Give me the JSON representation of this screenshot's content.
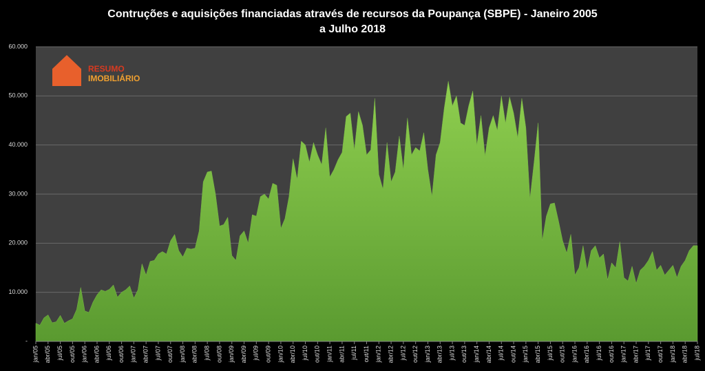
{
  "chart_data": {
    "type": "area",
    "title": "Contruções e aquisições financiadas através de recursos da Poupança (SBPE) - Janeiro 2005 a Julho 2018",
    "logo_text": [
      "RESUMO",
      "IMOBILIÁRIO"
    ],
    "categories": [
      "jan/05",
      null,
      null,
      "abr/05",
      null,
      null,
      "jul/05",
      null,
      null,
      "out/05",
      null,
      null,
      "jan/06",
      null,
      null,
      "abr/06",
      null,
      null,
      "jul/06",
      null,
      null,
      "out/06",
      null,
      null,
      "jan/07",
      null,
      null,
      "abr/07",
      null,
      null,
      "jul/07",
      null,
      null,
      "out/07",
      null,
      null,
      "jan/08",
      null,
      null,
      "abr/08",
      null,
      null,
      "jul/08",
      null,
      null,
      "out/08",
      null,
      null,
      "jan/09",
      null,
      null,
      "abr/09",
      null,
      null,
      "jul/09",
      null,
      null,
      "out/09",
      null,
      null,
      "jan/10",
      null,
      null,
      "abr/10",
      null,
      null,
      "jul/10",
      null,
      null,
      "out/10",
      null,
      null,
      "jan/11",
      null,
      null,
      "abr/11",
      null,
      null,
      "jul/11",
      null,
      null,
      "out/11",
      null,
      null,
      "jan/12",
      null,
      null,
      "abr/12",
      null,
      null,
      "jul/12",
      null,
      null,
      "out/12",
      null,
      null,
      "jan/13",
      null,
      null,
      "abr/13",
      null,
      null,
      "jul/13",
      null,
      null,
      "out/13",
      null,
      null,
      "jan/14",
      null,
      null,
      "abr/14",
      null,
      null,
      "jul/14",
      null,
      null,
      "out/14",
      null,
      null,
      "jan/15",
      null,
      null,
      "abr/15",
      null,
      null,
      "jul/15",
      null,
      null,
      "out/15",
      null,
      null,
      "jan/16",
      null,
      null,
      "abr/16",
      null,
      null,
      "jul/16",
      null,
      null,
      "out/16",
      null,
      null,
      "jan/17",
      null,
      null,
      "abr/17",
      null,
      null,
      "jul/17",
      null,
      null,
      "out/17",
      null,
      null,
      "jan/18",
      null,
      null,
      "abr/18",
      null,
      null,
      "jul/18"
    ],
    "series": [
      {
        "color": "#7ab648",
        "values": [
          3700,
          3300,
          4800,
          5400,
          3800,
          4000,
          5300,
          3700,
          4200,
          4600,
          6500,
          11000,
          6200,
          5900,
          8000,
          9500,
          10500,
          10200,
          10600,
          11500,
          9000,
          10000,
          10500,
          11300,
          8800,
          10500,
          15800,
          13500,
          16300,
          16500,
          17800,
          18300,
          17800,
          20500,
          21800,
          18500,
          17200,
          19000,
          18800,
          19000,
          22500,
          32500,
          34500,
          34700,
          30000,
          23500,
          23800,
          25300,
          17500,
          16500,
          21500,
          22500,
          20000,
          25800,
          25500,
          29500,
          30000,
          29000,
          32200,
          31800,
          23000,
          25000,
          29500,
          37200,
          33000,
          40800,
          40000,
          36500,
          40500,
          38000,
          36000,
          43500,
          33500,
          35000,
          37000,
          38500,
          45800,
          46500,
          39000,
          46800,
          44000,
          38000,
          39000,
          49500,
          34000,
          31000,
          40500,
          32500,
          34500,
          41800,
          35000,
          45500,
          38000,
          39500,
          38800,
          42500,
          35000,
          29500,
          38000,
          40500,
          47500,
          53000,
          48000,
          50000,
          44500,
          44000,
          48000,
          51000,
          40000,
          46000,
          37800,
          43500,
          46000,
          43000,
          50000,
          44500,
          49800,
          46500,
          41500,
          49500,
          43500,
          29000,
          36500,
          44500,
          20500,
          25500,
          28000,
          28200,
          24500,
          20500,
          18000,
          21800,
          13500,
          15000,
          19500,
          14500,
          18500,
          19500,
          17000,
          17800,
          12500,
          16000,
          15000,
          20300,
          13000,
          12300,
          15300,
          11800,
          14500,
          15300,
          16500,
          18300,
          14500,
          15500,
          13500,
          14500,
          15500,
          13000,
          15300,
          16500,
          18500,
          19500,
          19500
        ]
      }
    ],
    "ylim": [
      0,
      60000
    ],
    "yticks": [
      {
        "value": 0,
        "label": "-"
      },
      {
        "value": 10000,
        "label": "10.000"
      },
      {
        "value": 20000,
        "label": "20.000"
      },
      {
        "value": 30000,
        "label": "30.000"
      },
      {
        "value": 40000,
        "label": "40.000"
      },
      {
        "value": 50000,
        "label": "50.000"
      },
      {
        "value": 60000,
        "label": "60.000"
      }
    ],
    "grid": true
  }
}
